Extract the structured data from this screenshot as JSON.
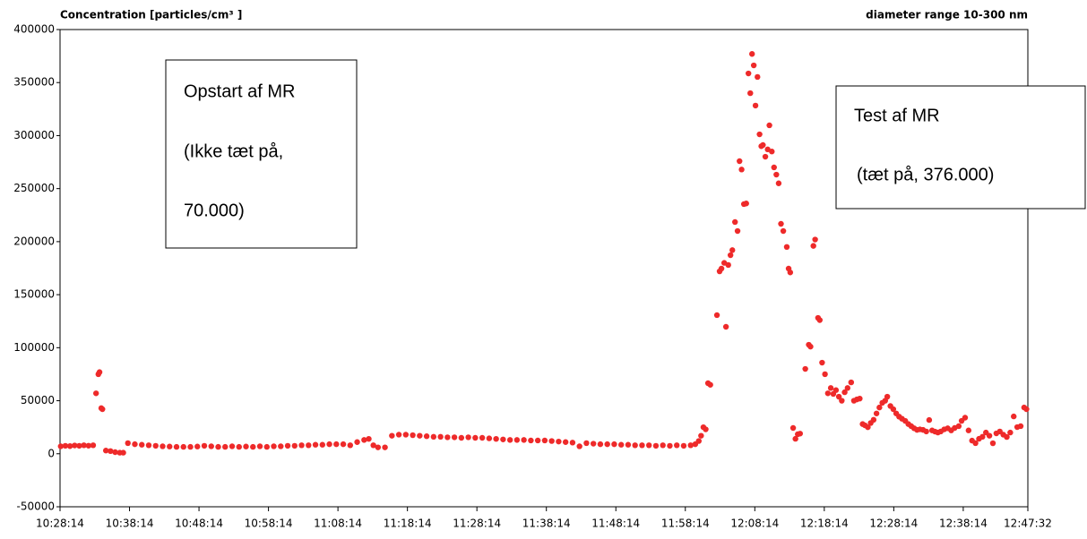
{
  "chart_data": {
    "type": "scatter",
    "title": "Concentration [particles/cm³ ]",
    "subtitle": "diameter range 10-300 nm",
    "xlim": [
      "10:28:14",
      "12:47:32"
    ],
    "xticks": [
      "10:28:14",
      "10:38:14",
      "10:48:14",
      "10:58:14",
      "11:08:14",
      "11:18:14",
      "11:28:14",
      "11:38:14",
      "11:48:14",
      "11:58:14",
      "12:08:14",
      "12:18:14",
      "12:28:14",
      "12:38:14",
      "12:47:32"
    ],
    "ylim": [
      -50000,
      400000
    ],
    "yticks": [
      -50000,
      0,
      50000,
      100000,
      150000,
      200000,
      250000,
      300000,
      350000,
      400000
    ],
    "annotations": [
      {
        "lines": [
          "Opstart af MR",
          "(Ikke tæt på,",
          "70.000)"
        ]
      },
      {
        "lines": [
          "Test af MR",
          "(tæt på, 376.000)"
        ]
      }
    ],
    "series": [
      {
        "color": "#ee2a2a",
        "x": [
          "10:28:20",
          "10:29:00",
          "10:29:40",
          "10:30:20",
          "10:31:00",
          "10:31:40",
          "10:32:20",
          "10:33:00",
          "10:33:25",
          "10:33:45",
          "10:33:55",
          "10:34:10",
          "10:34:20",
          "10:34:50",
          "10:35:30",
          "10:36:10",
          "10:36:50",
          "10:37:20",
          "10:38:00",
          "10:39:00",
          "10:40:00",
          "10:41:00",
          "10:42:00",
          "10:43:00",
          "10:44:00",
          "10:45:00",
          "10:46:00",
          "10:47:00",
          "10:48:00",
          "10:49:00",
          "10:50:00",
          "10:51:00",
          "10:52:00",
          "10:53:00",
          "10:54:00",
          "10:55:00",
          "10:56:00",
          "10:57:00",
          "10:58:00",
          "10:59:00",
          "11:00:00",
          "11:01:00",
          "11:02:00",
          "11:03:00",
          "11:04:00",
          "11:05:00",
          "11:06:00",
          "11:07:00",
          "11:08:00",
          "11:09:00",
          "11:10:00",
          "11:11:00",
          "11:12:00",
          "11:12:40",
          "11:13:20",
          "11:14:00",
          "11:15:00",
          "11:16:00",
          "11:17:00",
          "11:18:00",
          "11:19:00",
          "11:20:00",
          "11:21:00",
          "11:22:00",
          "11:23:00",
          "11:24:00",
          "11:25:00",
          "11:26:00",
          "11:27:00",
          "11:28:00",
          "11:29:00",
          "11:30:00",
          "11:31:00",
          "11:32:00",
          "11:33:00",
          "11:34:00",
          "11:35:00",
          "11:36:00",
          "11:37:00",
          "11:38:00",
          "11:39:00",
          "11:40:00",
          "11:41:00",
          "11:42:00",
          "11:43:00",
          "11:44:00",
          "11:45:00",
          "11:46:00",
          "11:47:00",
          "11:48:00",
          "11:49:00",
          "11:50:00",
          "11:51:00",
          "11:52:00",
          "11:53:00",
          "11:54:00",
          "11:55:00",
          "11:56:00",
          "11:57:00",
          "11:58:00",
          "11:59:00",
          "11:59:40",
          "12:00:10",
          "12:00:30",
          "12:00:50",
          "12:01:10",
          "12:01:30",
          "12:01:50",
          "12:02:47",
          "12:03:10",
          "12:03:26",
          "12:03:50",
          "12:04:05",
          "12:04:25",
          "12:04:44",
          "12:05:00",
          "12:05:23",
          "12:05:45",
          "12:06:02",
          "12:06:20",
          "12:06:40",
          "12:07:00",
          "12:07:19",
          "12:07:35",
          "12:07:50",
          "12:08:05",
          "12:08:20",
          "12:08:37",
          "12:08:55",
          "12:09:10",
          "12:09:24",
          "12:09:45",
          "12:10:05",
          "12:10:20",
          "12:10:41",
          "12:11:00",
          "12:11:20",
          "12:11:40",
          "12:12:00",
          "12:12:20",
          "12:12:50",
          "12:13:06",
          "12:13:20",
          "12:13:45",
          "12:14:05",
          "12:14:25",
          "12:14:45",
          "12:15:30",
          "12:16:00",
          "12:16:15",
          "12:16:40",
          "12:16:55",
          "12:17:20",
          "12:17:35",
          "12:17:55",
          "12:18:20",
          "12:18:45",
          "12:19:10",
          "12:19:32",
          "12:19:55",
          "12:20:20",
          "12:20:45",
          "12:21:10",
          "12:21:35",
          "12:22:06",
          "12:22:30",
          "12:22:55",
          "12:23:20",
          "12:23:45",
          "12:24:05",
          "12:24:30",
          "12:24:55",
          "12:25:20",
          "12:25:45",
          "12:26:10",
          "12:26:35",
          "12:27:00",
          "12:27:18",
          "12:27:45",
          "12:28:10",
          "12:28:35",
          "12:29:00",
          "12:29:25",
          "12:29:53",
          "12:30:20",
          "12:30:45",
          "12:31:10",
          "12:31:35",
          "12:32:00",
          "12:32:27",
          "12:32:55",
          "12:33:20",
          "12:33:45",
          "12:34:10",
          "12:34:35",
          "12:35:00",
          "12:35:30",
          "12:36:00",
          "12:36:30",
          "12:37:00",
          "12:37:35",
          "12:38:00",
          "12:38:30",
          "12:39:00",
          "12:39:30",
          "12:40:00",
          "12:40:30",
          "12:41:00",
          "12:41:30",
          "12:42:00",
          "12:42:30",
          "12:43:00",
          "12:43:30",
          "12:44:00",
          "12:44:30",
          "12:45:00",
          "12:45:30",
          "12:46:00",
          "12:46:30",
          "12:47:00",
          "12:47:20"
        ],
        "values": [
          7000,
          7500,
          7200,
          7800,
          7500,
          8000,
          7600,
          8000,
          57000,
          75000,
          77000,
          43000,
          42000,
          3000,
          2500,
          1500,
          1000,
          1000,
          10000,
          9000,
          8500,
          8000,
          7500,
          7000,
          6800,
          6500,
          6500,
          6500,
          6800,
          7500,
          7000,
          6500,
          6500,
          7000,
          6500,
          6800,
          6500,
          7000,
          6500,
          7000,
          7000,
          7500,
          7500,
          8000,
          8000,
          8500,
          8500,
          9000,
          9000,
          9000,
          8000,
          11000,
          13000,
          14000,
          8000,
          6000,
          6000,
          17000,
          18000,
          18000,
          17500,
          17000,
          16500,
          16000,
          16000,
          15500,
          15500,
          15000,
          15500,
          15000,
          15000,
          14500,
          14000,
          13500,
          13000,
          13000,
          13000,
          12500,
          12500,
          12500,
          12000,
          11500,
          11000,
          10500,
          7000,
          10000,
          9500,
          9000,
          9000,
          9000,
          8500,
          8500,
          8000,
          8000,
          8000,
          7500,
          8000,
          7500,
          8000,
          7500,
          8000,
          9000,
          12000,
          17000,
          25000,
          23000,
          66500,
          65000,
          130700,
          172000,
          174600,
          180000,
          119700,
          178000,
          187200,
          192000,
          218500,
          210000,
          275900,
          268000,
          235400,
          236000,
          358600,
          340000,
          377000,
          366200,
          328300,
          355300,
          301200,
          290000,
          291100,
          280100,
          287000,
          309700,
          285000,
          270000,
          263200,
          255000,
          216800,
          210000,
          195000,
          174600,
          171000,
          24300,
          14100,
          18400,
          19000,
          80000,
          102800,
          101000,
          196000,
          202000,
          128100,
          126000,
          85900,
          75000,
          57000,
          62000,
          56400,
          60000,
          53800,
          50000,
          58000,
          62000,
          67300,
          50000,
          51200,
          52000,
          28000,
          26800,
          25000,
          29000,
          32000,
          38000,
          43600,
          48000,
          50000,
          53800,
          45000,
          42000,
          38000,
          35000,
          33000,
          31000,
          28000,
          26000,
          24000,
          22500,
          23000,
          22500,
          21000,
          31800,
          22000,
          20900,
          20000,
          21000,
          23000,
          24000,
          22000,
          24300,
          26000,
          31000,
          34000,
          22000,
          12400,
          10000,
          14100,
          16000,
          20000,
          17000,
          9900,
          19200,
          21000,
          18000,
          15800,
          20000,
          35200,
          25100,
          26000,
          43600,
          42000
        ]
      }
    ]
  }
}
